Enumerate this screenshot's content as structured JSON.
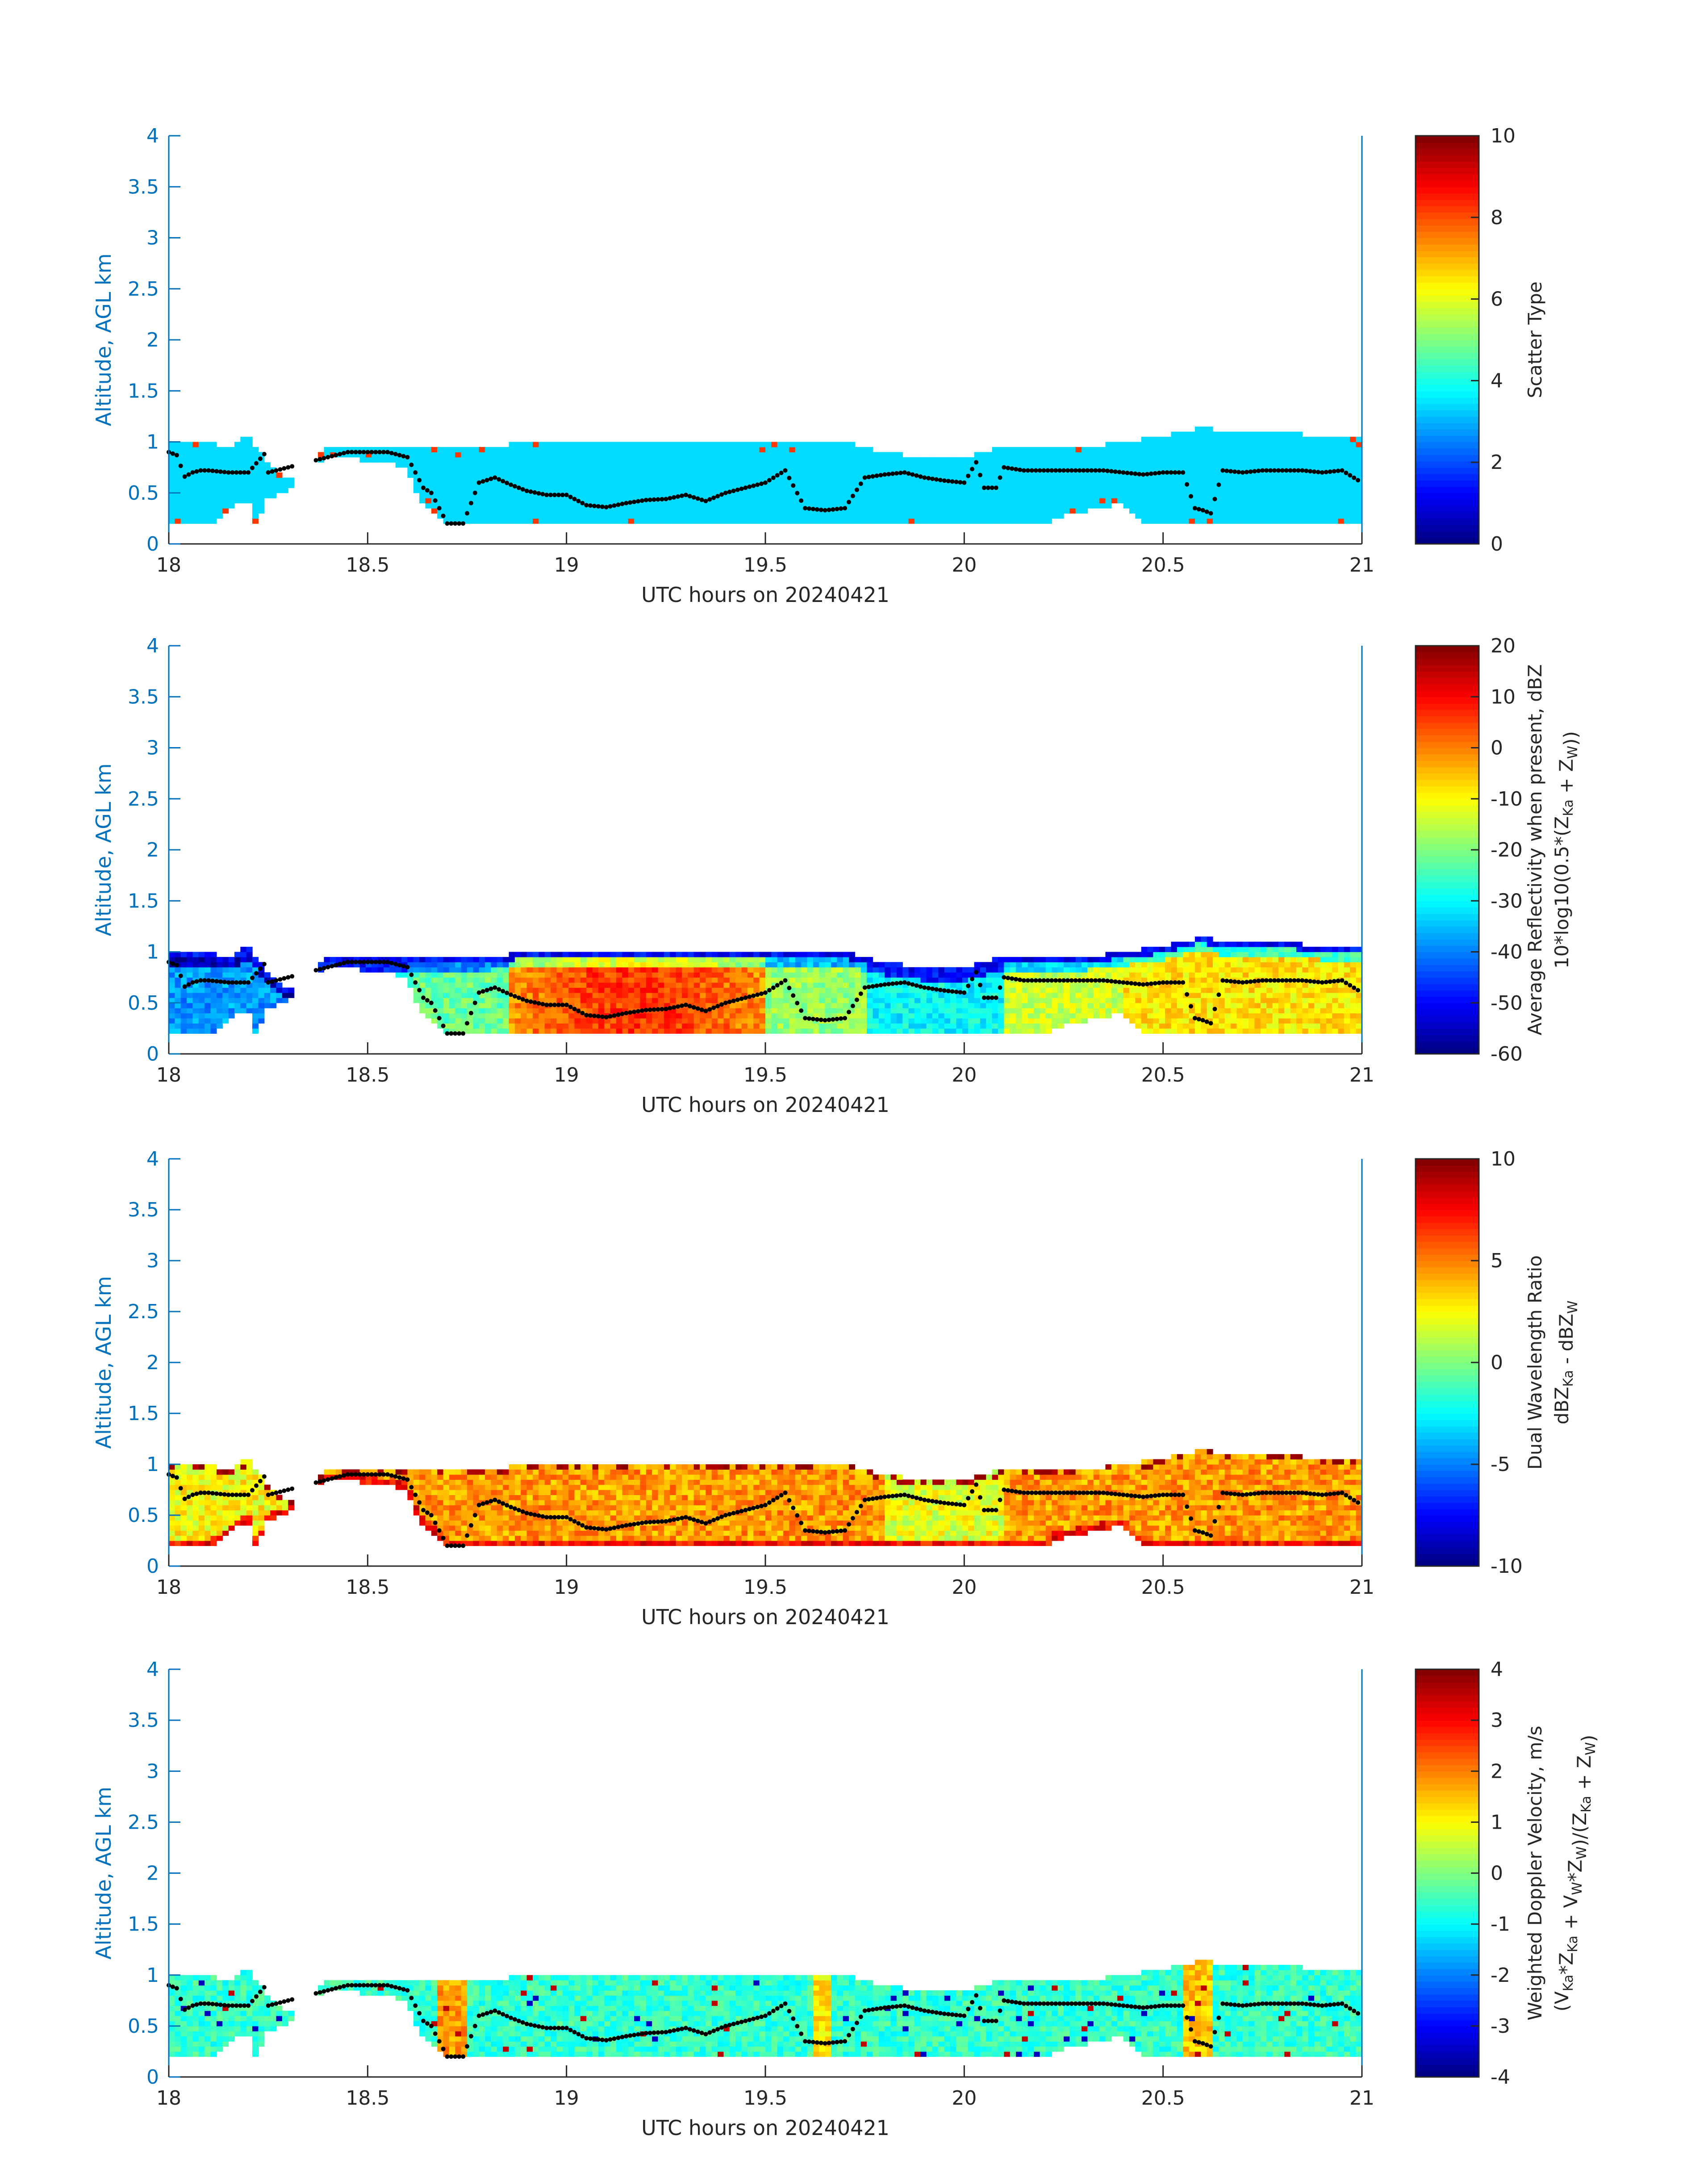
{
  "chart_data": [
    {
      "type": "heatmap",
      "xlabel": "UTC hours on 20240421",
      "ylabel": "Altitude, AGL km",
      "xlim": [
        18,
        21
      ],
      "ylim": [
        0,
        4
      ],
      "xticks": [
        "18",
        "18.5",
        "19",
        "19.5",
        "20",
        "20.5",
        "21"
      ],
      "yticks": [
        "0",
        "0.5",
        "1",
        "1.5",
        "2",
        "2.5",
        "3",
        "3.5",
        "4"
      ],
      "colorbar": {
        "label_lines": [
          "Scatter Type"
        ],
        "limits": [
          0,
          10
        ],
        "ticks": [
          "0",
          "2",
          "4",
          "6",
          "8",
          "10"
        ],
        "colormap": "jet"
      },
      "field": "scatter_type",
      "value_range_shown": [
        3,
        4
      ]
    },
    {
      "type": "heatmap",
      "xlabel": "UTC hours on 20240421",
      "ylabel": "Altitude, AGL km",
      "xlim": [
        18,
        21
      ],
      "ylim": [
        0,
        4
      ],
      "xticks": [
        "18",
        "18.5",
        "19",
        "19.5",
        "20",
        "20.5",
        "21"
      ],
      "yticks": [
        "0",
        "0.5",
        "1",
        "1.5",
        "2",
        "2.5",
        "3",
        "3.5",
        "4"
      ],
      "colorbar": {
        "label_lines": [
          "Average Reflectivity when present, dBZ",
          "10*log10(0.5*(Z_Ka + Z_W))"
        ],
        "limits": [
          -60,
          20
        ],
        "ticks": [
          "-60",
          "-50",
          "-40",
          "-30",
          "-20",
          "-10",
          "0",
          "10",
          "20"
        ],
        "colormap": "jet"
      },
      "field": "reflectivity",
      "value_range_shown": [
        -50,
        10
      ]
    },
    {
      "type": "heatmap",
      "xlabel": "UTC hours on 20240421",
      "ylabel": "Altitude, AGL km",
      "xlim": [
        18,
        21
      ],
      "ylim": [
        0,
        4
      ],
      "xticks": [
        "18",
        "18.5",
        "19",
        "19.5",
        "20",
        "20.5",
        "21"
      ],
      "yticks": [
        "0",
        "0.5",
        "1",
        "1.5",
        "2",
        "2.5",
        "3",
        "3.5",
        "4"
      ],
      "colorbar": {
        "label_lines": [
          "Dual Wavelength Ratio",
          "dBZ_Ka - dBZ_W"
        ],
        "limits": [
          -10,
          10
        ],
        "ticks": [
          "-10",
          "-5",
          "0",
          "5",
          "10"
        ],
        "colormap": "jet"
      },
      "field": "dwr",
      "value_range_shown": [
        0,
        8
      ]
    },
    {
      "type": "heatmap",
      "xlabel": "UTC hours on 20240421",
      "ylabel": "Altitude, AGL km",
      "xlim": [
        18,
        21
      ],
      "ylim": [
        0,
        4
      ],
      "xticks": [
        "18",
        "18.5",
        "19",
        "19.5",
        "20",
        "20.5",
        "21"
      ],
      "yticks": [
        "0",
        "0.5",
        "1",
        "1.5",
        "2",
        "2.5",
        "3",
        "3.5",
        "4"
      ],
      "colorbar": {
        "label_lines": [
          "Weighted Doppler Velocity, m/s",
          "(V_Ka*Z_Ka + V_W*Z_W)/(Z_Ka + Z_W)"
        ],
        "limits": [
          -4,
          4
        ],
        "ticks": [
          "-4",
          "-3",
          "-2",
          "-1",
          "0",
          "1",
          "2",
          "3",
          "4"
        ],
        "colormap": "jet"
      },
      "field": "doppler",
      "value_range_shown": [
        -2,
        3
      ]
    }
  ],
  "cloud_top_km": {
    "x": [
      18.0,
      18.05,
      18.1,
      18.15,
      18.2,
      18.25,
      18.3,
      18.4,
      18.45,
      18.5,
      18.55,
      18.6,
      18.65,
      18.7,
      18.75,
      18.8,
      18.9,
      19.0,
      19.1,
      19.2,
      19.3,
      19.4,
      19.5,
      19.6,
      19.7,
      19.8,
      19.9,
      20.0,
      20.1,
      20.2,
      20.3,
      20.4,
      20.5,
      20.6,
      20.65,
      20.7,
      20.8,
      20.9,
      21.0
    ],
    "y": [
      1.0,
      1.0,
      1.0,
      0.95,
      1.05,
      0.8,
      0.65,
      0.95,
      0.95,
      0.95,
      0.95,
      0.95,
      0.95,
      0.95,
      0.95,
      0.95,
      1.0,
      1.0,
      1.0,
      1.0,
      1.0,
      1.0,
      1.0,
      1.0,
      1.0,
      0.9,
      0.85,
      0.85,
      0.95,
      0.95,
      0.95,
      1.0,
      1.05,
      1.15,
      1.1,
      1.1,
      1.1,
      1.05,
      1.05
    ]
  },
  "cloud_base_km": {
    "x": [
      18.0,
      18.1,
      18.2,
      18.22,
      18.25,
      18.3,
      18.4,
      18.5,
      18.6,
      18.63,
      18.7,
      18.8,
      19.0,
      19.5,
      19.6,
      20.0,
      20.2,
      20.22,
      20.4,
      20.45,
      20.5,
      21.0
    ],
    "y": [
      0.18,
      0.18,
      0.45,
      0.18,
      0.45,
      0.5,
      0.85,
      0.82,
      0.75,
      0.45,
      0.18,
      0.18,
      0.18,
      0.18,
      0.18,
      0.18,
      0.18,
      0.25,
      0.4,
      0.18,
      0.18,
      0.18
    ]
  },
  "detection_line_km": {
    "x": [
      18.0,
      18.02,
      18.04,
      18.06,
      18.08,
      18.1,
      18.15,
      18.2,
      18.24,
      18.25,
      18.4,
      18.45,
      18.5,
      18.55,
      18.6,
      18.64,
      18.66,
      18.7,
      18.74,
      18.78,
      18.82,
      18.86,
      18.9,
      18.95,
      19.0,
      19.05,
      19.1,
      19.15,
      19.2,
      19.25,
      19.3,
      19.35,
      19.4,
      19.45,
      19.5,
      19.55,
      19.6,
      19.65,
      19.7,
      19.75,
      19.8,
      19.85,
      19.9,
      19.95,
      20.0,
      20.03,
      20.05,
      20.08,
      20.1,
      20.15,
      20.2,
      20.25,
      20.3,
      20.35,
      20.4,
      20.45,
      20.5,
      20.55,
      20.58,
      20.6,
      20.62,
      20.65,
      20.7,
      20.75,
      20.8,
      20.85,
      20.9,
      20.95,
      21.0
    ],
    "y": [
      0.9,
      0.87,
      0.66,
      0.7,
      0.72,
      0.72,
      0.7,
      0.7,
      0.88,
      0.7,
      0.85,
      0.9,
      0.9,
      0.9,
      0.85,
      0.55,
      0.5,
      0.2,
      0.2,
      0.6,
      0.65,
      0.58,
      0.52,
      0.48,
      0.48,
      0.38,
      0.36,
      0.4,
      0.43,
      0.44,
      0.48,
      0.42,
      0.5,
      0.55,
      0.6,
      0.72,
      0.35,
      0.33,
      0.35,
      0.65,
      0.68,
      0.7,
      0.65,
      0.62,
      0.6,
      0.8,
      0.55,
      0.55,
      0.75,
      0.72,
      0.72,
      0.72,
      0.72,
      0.72,
      0.7,
      0.68,
      0.7,
      0.7,
      0.35,
      0.33,
      0.3,
      0.72,
      0.7,
      0.72,
      0.72,
      0.72,
      0.7,
      0.72,
      0.6
    ]
  },
  "gaps_hours": [
    [
      18.32,
      18.37
    ]
  ]
}
